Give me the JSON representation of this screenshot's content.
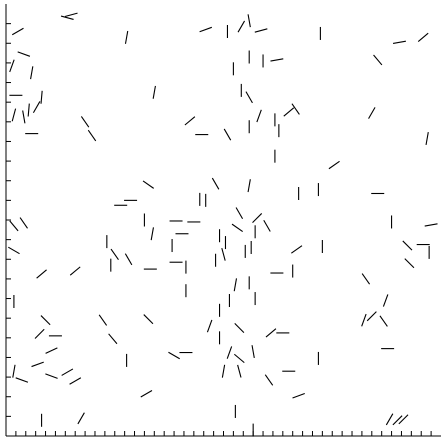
{
  "chart_data": {
    "type": "quiver",
    "description_free": true,
    "title": "",
    "xlabel": "",
    "ylabel": "",
    "xlim": [
      0,
      44
    ],
    "ylim": [
      0,
      44
    ],
    "grid": false,
    "legend": "none",
    "axes": {
      "left": true,
      "bottom": true,
      "right": false,
      "top": false
    },
    "x_ticks": [
      1,
      2,
      3,
      4,
      5,
      6,
      7,
      8,
      9,
      10,
      11,
      12,
      13,
      14,
      15,
      16,
      17,
      18,
      19,
      20,
      21,
      22,
      23,
      24,
      25,
      26,
      27,
      28,
      29,
      30,
      31,
      32,
      33,
      34,
      35,
      36,
      37,
      38,
      39,
      40,
      41,
      42,
      43
    ],
    "y_ticks": [
      2,
      4,
      6,
      8,
      10,
      12,
      14,
      16,
      18,
      20,
      22,
      24,
      26,
      28,
      30,
      32,
      34,
      36,
      38,
      40,
      42
    ],
    "line_color": "#000000",
    "segments": [
      {
        "x": 6.2,
        "y": 42.6,
        "angle": -15
      },
      {
        "x": 6.6,
        "y": 42.9,
        "angle": 15
      },
      {
        "x": 1.2,
        "y": 41.2,
        "angle": 30
      },
      {
        "x": 1.8,
        "y": 38.9,
        "angle": -20
      },
      {
        "x": 12.2,
        "y": 40.6,
        "angle": 80
      },
      {
        "x": 20.2,
        "y": 41.4,
        "angle": 20
      },
      {
        "x": 22.4,
        "y": 41.2,
        "angle": 90
      },
      {
        "x": 23.8,
        "y": 41.7,
        "angle": 60
      },
      {
        "x": 24.6,
        "y": 42.3,
        "angle": -80
      },
      {
        "x": 25.8,
        "y": 41.3,
        "angle": 15
      },
      {
        "x": 31.8,
        "y": 41.0,
        "angle": 90
      },
      {
        "x": 39.8,
        "y": 40.1,
        "angle": 10
      },
      {
        "x": 42.2,
        "y": 40.6,
        "angle": 40
      },
      {
        "x": 0.6,
        "y": 37.7,
        "angle": 70
      },
      {
        "x": 2.6,
        "y": 37.0,
        "angle": 80
      },
      {
        "x": 24.6,
        "y": 38.6,
        "angle": 90
      },
      {
        "x": 26.0,
        "y": 38.2,
        "angle": 90
      },
      {
        "x": 27.4,
        "y": 38.3,
        "angle": 10
      },
      {
        "x": 37.6,
        "y": 38.3,
        "angle": -50
      },
      {
        "x": 23.0,
        "y": 37.4,
        "angle": 90
      },
      {
        "x": 1.0,
        "y": 34.7,
        "angle": 0
      },
      {
        "x": 3.6,
        "y": 34.5,
        "angle": 85
      },
      {
        "x": 15.0,
        "y": 35.0,
        "angle": 80
      },
      {
        "x": 23.8,
        "y": 35.2,
        "angle": 90
      },
      {
        "x": 24.6,
        "y": 34.5,
        "angle": -60
      },
      {
        "x": 0.8,
        "y": 32.7,
        "angle": 75
      },
      {
        "x": 1.8,
        "y": 32.5,
        "angle": -80
      },
      {
        "x": 2.3,
        "y": 33.2,
        "angle": 85
      },
      {
        "x": 3.1,
        "y": 33.5,
        "angle": 60
      },
      {
        "x": 8.0,
        "y": 32.0,
        "angle": -55
      },
      {
        "x": 18.6,
        "y": 32.1,
        "angle": 40
      },
      {
        "x": 25.6,
        "y": 32.6,
        "angle": 70
      },
      {
        "x": 27.2,
        "y": 32.2,
        "angle": -90
      },
      {
        "x": 28.6,
        "y": 33.0,
        "angle": 40
      },
      {
        "x": 29.3,
        "y": 33.3,
        "angle": -55
      },
      {
        "x": 37.0,
        "y": 32.9,
        "angle": 60
      },
      {
        "x": 42.6,
        "y": 30.3,
        "angle": 80
      },
      {
        "x": 2.6,
        "y": 30.8,
        "angle": 0
      },
      {
        "x": 8.7,
        "y": 30.6,
        "angle": -55
      },
      {
        "x": 19.8,
        "y": 30.7,
        "angle": 0
      },
      {
        "x": 22.4,
        "y": 30.7,
        "angle": -60
      },
      {
        "x": 24.6,
        "y": 31.5,
        "angle": -90
      },
      {
        "x": 27.6,
        "y": 31.1,
        "angle": -90
      },
      {
        "x": 27.2,
        "y": 28.5,
        "angle": 90
      },
      {
        "x": 33.2,
        "y": 27.6,
        "angle": 35
      },
      {
        "x": 14.4,
        "y": 25.6,
        "angle": -35
      },
      {
        "x": 20.2,
        "y": 24.0,
        "angle": 90
      },
      {
        "x": 21.2,
        "y": 25.7,
        "angle": -60
      },
      {
        "x": 24.6,
        "y": 25.5,
        "angle": 80
      },
      {
        "x": 11.6,
        "y": 23.5,
        "angle": 0
      },
      {
        "x": 12.6,
        "y": 24.0,
        "angle": 0
      },
      {
        "x": 19.6,
        "y": 24.1,
        "angle": -90
      },
      {
        "x": 31.6,
        "y": 25.1,
        "angle": 90
      },
      {
        "x": 37.6,
        "y": 24.7,
        "angle": 0
      },
      {
        "x": 23.6,
        "y": 22.7,
        "angle": -60
      },
      {
        "x": 25.4,
        "y": 22.2,
        "angle": 45
      },
      {
        "x": 26.4,
        "y": 21.4,
        "angle": -60
      },
      {
        "x": 29.6,
        "y": 24.7,
        "angle": 90
      },
      {
        "x": 22.2,
        "y": 19.7,
        "angle": 90
      },
      {
        "x": 17.2,
        "y": 21.9,
        "angle": 0
      },
      {
        "x": 19.0,
        "y": 21.8,
        "angle": 0
      },
      {
        "x": 14.0,
        "y": 22.0,
        "angle": -90
      },
      {
        "x": 25.2,
        "y": 20.8,
        "angle": -90
      },
      {
        "x": 24.8,
        "y": 19.2,
        "angle": 90
      },
      {
        "x": 23.4,
        "y": 21.2,
        "angle": -35
      },
      {
        "x": 21.6,
        "y": 20.4,
        "angle": 90
      },
      {
        "x": 14.8,
        "y": 20.6,
        "angle": 80
      },
      {
        "x": 16.8,
        "y": 19.4,
        "angle": 90
      },
      {
        "x": 17.8,
        "y": 20.6,
        "angle": 0
      },
      {
        "x": 12.4,
        "y": 18.0,
        "angle": -60
      },
      {
        "x": 17.2,
        "y": 17.7,
        "angle": 0
      },
      {
        "x": 18.2,
        "y": 17.2,
        "angle": 90
      },
      {
        "x": 21.2,
        "y": 17.9,
        "angle": -90
      },
      {
        "x": 22.0,
        "y": 18.5,
        "angle": -75
      },
      {
        "x": 24.2,
        "y": 18.8,
        "angle": -90
      },
      {
        "x": 29.4,
        "y": 19.0,
        "angle": 35
      },
      {
        "x": 32.0,
        "y": 19.3,
        "angle": 90
      },
      {
        "x": 39.0,
        "y": 21.8,
        "angle": 90
      },
      {
        "x": 43.0,
        "y": 21.5,
        "angle": 10
      },
      {
        "x": 40.6,
        "y": 19.4,
        "angle": -45
      },
      {
        "x": 42.2,
        "y": 19.5,
        "angle": 0
      },
      {
        "x": 42.8,
        "y": 18.7,
        "angle": 90
      },
      {
        "x": 40.8,
        "y": 17.6,
        "angle": -45
      },
      {
        "x": 0.8,
        "y": 21.4,
        "angle": -50
      },
      {
        "x": 1.8,
        "y": 21.7,
        "angle": -55
      },
      {
        "x": 0.8,
        "y": 18.9,
        "angle": -30
      },
      {
        "x": 10.2,
        "y": 19.8,
        "angle": 90
      },
      {
        "x": 11.0,
        "y": 18.5,
        "angle": -55
      },
      {
        "x": 14.6,
        "y": 17.0,
        "angle": 0
      },
      {
        "x": 10.6,
        "y": 17.4,
        "angle": 90
      },
      {
        "x": 23.2,
        "y": 15.4,
        "angle": 80
      },
      {
        "x": 24.6,
        "y": 15.6,
        "angle": 90
      },
      {
        "x": 27.4,
        "y": 16.6,
        "angle": 0
      },
      {
        "x": 29.0,
        "y": 16.8,
        "angle": 90
      },
      {
        "x": 36.4,
        "y": 16.0,
        "angle": -55
      },
      {
        "x": 18.2,
        "y": 14.8,
        "angle": 90
      },
      {
        "x": 7.0,
        "y": 16.8,
        "angle": 40
      },
      {
        "x": 3.6,
        "y": 16.5,
        "angle": 40
      },
      {
        "x": 21.6,
        "y": 12.8,
        "angle": 90
      },
      {
        "x": 22.6,
        "y": 13.8,
        "angle": 90
      },
      {
        "x": 25.2,
        "y": 14.0,
        "angle": 90
      },
      {
        "x": 0.8,
        "y": 13.7,
        "angle": 90
      },
      {
        "x": 38.4,
        "y": 13.8,
        "angle": 70
      },
      {
        "x": 37.0,
        "y": 12.2,
        "angle": 45
      },
      {
        "x": 36.2,
        "y": 11.8,
        "angle": 70
      },
      {
        "x": 38.2,
        "y": 11.7,
        "angle": -55
      },
      {
        "x": 4.0,
        "y": 11.8,
        "angle": -45
      },
      {
        "x": 5.0,
        "y": 10.2,
        "angle": 0
      },
      {
        "x": 3.4,
        "y": 10.4,
        "angle": 45
      },
      {
        "x": 9.8,
        "y": 11.8,
        "angle": -55
      },
      {
        "x": 10.8,
        "y": 9.9,
        "angle": -50
      },
      {
        "x": 14.4,
        "y": 11.9,
        "angle": -45
      },
      {
        "x": 20.6,
        "y": 11.2,
        "angle": 70
      },
      {
        "x": 21.6,
        "y": 10.0,
        "angle": 90
      },
      {
        "x": 23.6,
        "y": 11.0,
        "angle": -45
      },
      {
        "x": 26.8,
        "y": 10.5,
        "angle": 40
      },
      {
        "x": 28.0,
        "y": 10.5,
        "angle": 0
      },
      {
        "x": 22.6,
        "y": 8.5,
        "angle": 70
      },
      {
        "x": 17.0,
        "y": 8.2,
        "angle": -30
      },
      {
        "x": 18.2,
        "y": 8.5,
        "angle": 0
      },
      {
        "x": 25.0,
        "y": 8.6,
        "angle": -80
      },
      {
        "x": 23.6,
        "y": 7.9,
        "angle": -40
      },
      {
        "x": 31.6,
        "y": 7.9,
        "angle": 90
      },
      {
        "x": 38.6,
        "y": 8.9,
        "angle": 0
      },
      {
        "x": 4.6,
        "y": 8.7,
        "angle": 25
      },
      {
        "x": 3.2,
        "y": 7.3,
        "angle": 20
      },
      {
        "x": 12.2,
        "y": 7.7,
        "angle": 90
      },
      {
        "x": 6.2,
        "y": 6.5,
        "angle": 30
      },
      {
        "x": 0.8,
        "y": 6.6,
        "angle": 80
      },
      {
        "x": 22.0,
        "y": 6.6,
        "angle": 80
      },
      {
        "x": 23.6,
        "y": 6.6,
        "angle": -75
      },
      {
        "x": 26.6,
        "y": 5.7,
        "angle": -55
      },
      {
        "x": 28.6,
        "y": 6.6,
        "angle": 0
      },
      {
        "x": 1.6,
        "y": 5.7,
        "angle": -20
      },
      {
        "x": 4.6,
        "y": 6.1,
        "angle": -20
      },
      {
        "x": 7.0,
        "y": 5.6,
        "angle": 30
      },
      {
        "x": 14.2,
        "y": 4.3,
        "angle": 30
      },
      {
        "x": 29.6,
        "y": 4.1,
        "angle": 20
      },
      {
        "x": 3.6,
        "y": 1.6,
        "angle": 90
      },
      {
        "x": 7.6,
        "y": 1.8,
        "angle": 60
      },
      {
        "x": 23.2,
        "y": 2.5,
        "angle": 90
      },
      {
        "x": 38.8,
        "y": 1.7,
        "angle": 60
      },
      {
        "x": 39.6,
        "y": 1.6,
        "angle": 45
      },
      {
        "x": 40.2,
        "y": 1.7,
        "angle": 45
      },
      {
        "x": 25.0,
        "y": 0.6,
        "angle": 90
      }
    ]
  }
}
